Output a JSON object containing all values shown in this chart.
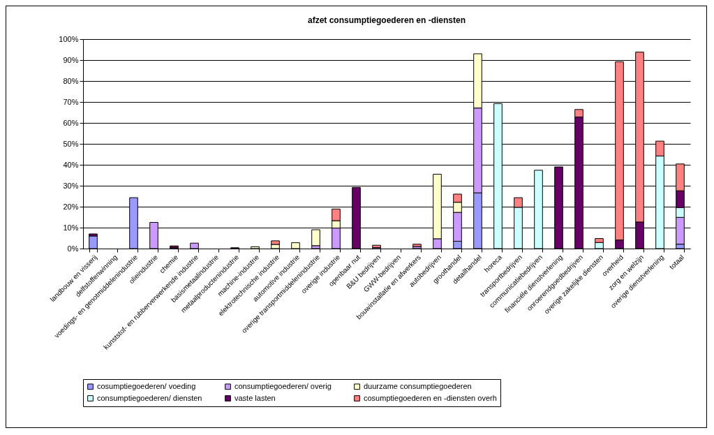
{
  "chart_data": {
    "type": "bar",
    "title": "afzet consumptiegoederen en -diensten",
    "stacked": true,
    "legend": "bottom",
    "grid": "y",
    "categories": [
      "landbouw en visserij",
      "delfstoffenwinning",
      "voedings- en genotmiddelenindustrie",
      "olieindustrie",
      "chemie",
      "kunststof- en rubberverwerkende industrie",
      "basismetaalindustrie",
      "metaalproductenindustrie",
      "machine-industrie",
      "elektrotechnische industrie",
      "automotive industrie",
      "overige transportmiddelenindustrie",
      "overige industrie",
      "openbaar nut",
      "B&U bedrijven",
      "GWW-bedrijven",
      "bouwinstallatie en afwerkers",
      "autobedrijven",
      "groothandel",
      "detailhandel",
      "horeca",
      "transportbedrijven",
      "communicatiebedrijven",
      "financiéle dienstverlening",
      "onroerendgoedbedrijven",
      "overige zakelijke diensten",
      "overheid",
      "zorg en welzijn",
      "overige dienstverlening",
      "totaal"
    ],
    "ylim": [
      0,
      100
    ],
    "yticks": [
      {
        "value": 0,
        "label": "0%"
      },
      {
        "value": 10,
        "label": "10%"
      },
      {
        "value": 20,
        "label": "20%"
      },
      {
        "value": 30,
        "label": "30%"
      },
      {
        "value": 40,
        "label": "40%"
      },
      {
        "value": 50,
        "label": "50%"
      },
      {
        "value": 60,
        "label": "60%"
      },
      {
        "value": 70,
        "label": "70%"
      },
      {
        "value": 80,
        "label": "80%"
      },
      {
        "value": 90,
        "label": "90%"
      },
      {
        "value": 100,
        "label": "100%"
      }
    ],
    "series": [
      {
        "name": "cosumptiegoederen/ voeding",
        "color": "#9999ff",
        "values": [
          6,
          null,
          24.3,
          null,
          null,
          null,
          null,
          null,
          null,
          null,
          null,
          null,
          null,
          null,
          null,
          null,
          null,
          null,
          3.5,
          26.6,
          null,
          null,
          null,
          null,
          null,
          null,
          null,
          null,
          null,
          2.1
        ]
      },
      {
        "name": "consumptiegoederen/ overig",
        "color": "#cc99ff",
        "values": [
          null,
          null,
          null,
          12.5,
          null,
          2.6,
          null,
          null,
          null,
          null,
          null,
          1.4,
          9.8,
          null,
          0.5,
          null,
          1,
          4.7,
          13.8,
          40.5,
          null,
          null,
          null,
          null,
          null,
          null,
          null,
          null,
          null,
          12.8
        ]
      },
      {
        "name": "duurzame consumptiegoederen",
        "color": "#ffffcc",
        "values": [
          null,
          null,
          null,
          null,
          null,
          null,
          null,
          null,
          0.9,
          2,
          2.8,
          7.6,
          3.5,
          null,
          null,
          null,
          null,
          30.8,
          4.8,
          25.9,
          null,
          null,
          null,
          null,
          null,
          null,
          null,
          null,
          null,
          null
        ]
      },
      {
        "name": "consumptiegoederen/ diensten",
        "color": "#ccffff",
        "values": [
          null,
          null,
          null,
          null,
          null,
          null,
          null,
          null,
          null,
          null,
          null,
          null,
          null,
          null,
          null,
          null,
          null,
          null,
          null,
          null,
          69.2,
          19.7,
          37.4,
          null,
          null,
          2.9,
          null,
          null,
          44.2,
          4.6
        ]
      },
      {
        "name": "vaste lasten",
        "color": "#660066",
        "values": [
          1,
          null,
          null,
          null,
          0.8,
          null,
          null,
          0.4,
          null,
          null,
          null,
          null,
          null,
          29.2,
          null,
          null,
          null,
          null,
          null,
          null,
          null,
          null,
          null,
          39,
          62.8,
          null,
          4.1,
          12.7,
          null,
          8.1
        ]
      },
      {
        "name": "cosumptiegoederen en -diensten overh",
        "color": "#ff8080",
        "values": [
          null,
          null,
          null,
          null,
          0.5,
          null,
          null,
          null,
          null,
          1.7,
          null,
          null,
          5.6,
          null,
          1.1,
          null,
          1.1,
          null,
          3.9,
          null,
          null,
          4.6,
          null,
          null,
          3.6,
          1.9,
          85.1,
          81.1,
          7.1,
          12.8
        ]
      }
    ]
  }
}
